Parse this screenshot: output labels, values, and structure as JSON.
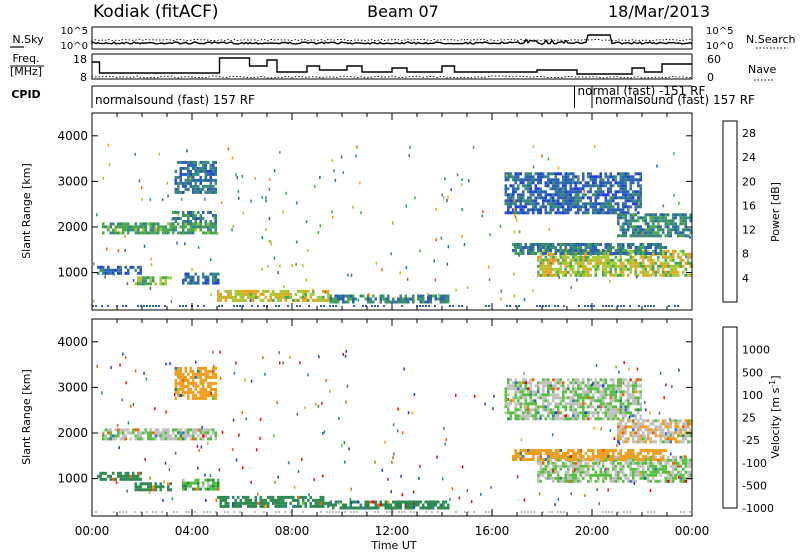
{
  "header": {
    "site": "Kodiak (fitACF)",
    "beam": "Beam 07",
    "date": "18/Mar/2013"
  },
  "strip": {
    "nsky_label": "N.Sky",
    "nsearch_label": "N.Search",
    "freq_label_line1": "Freq.",
    "freq_label_line2": "[MHz]",
    "nave_label": "Nave",
    "cpid_label": "CPID",
    "noise_ticks": [
      "10^5",
      "10^0"
    ],
    "freq_ticks": [
      "18",
      "8"
    ],
    "nave_ticks": [
      "60",
      "0"
    ],
    "cpid_segments": [
      {
        "label": "normalsound (fast) 157 RF",
        "t_start": 0,
        "t_end": 19.3
      },
      {
        "label": "normal (fast) -151 RF",
        "t_start": 19.3,
        "t_end": 20.0
      },
      {
        "label": "normalsound (fast) 157 RF",
        "t_start": 20.0,
        "t_end": 24
      }
    ]
  },
  "chart_data": [
    {
      "type": "heatmap",
      "title": "",
      "xlabel": "Time UT",
      "ylabel": "Slant Range [km]",
      "xlim": [
        0,
        24
      ],
      "ylim": [
        180,
        4500
      ],
      "x_ticks": [
        "00:00",
        "04:00",
        "08:00",
        "12:00",
        "16:00",
        "20:00",
        "00:00"
      ],
      "y_ticks": [
        1000,
        2000,
        3000,
        4000
      ],
      "colorbar": {
        "label": "Power [dB]",
        "range": [
          0,
          30
        ],
        "ticks": [
          4,
          8,
          12,
          16,
          20,
          24,
          28
        ],
        "colors": [
          "#1f3fe0",
          "#2c62b0",
          "#3a8a78",
          "#4aa850",
          "#a8c838",
          "#f0a020",
          "#f06010",
          "#e01010"
        ]
      },
      "regions": [
        {
          "t0": 0.2,
          "t1": 2.0,
          "r0": 1000,
          "r1": 1150,
          "value": 6
        },
        {
          "t0": 1.7,
          "t1": 3.2,
          "r0": 780,
          "r1": 920,
          "value": 14
        },
        {
          "t0": 3.6,
          "t1": 5.1,
          "r0": 800,
          "r1": 1000,
          "value": 6
        },
        {
          "t0": 0.4,
          "t1": 5.0,
          "r0": 1850,
          "r1": 2100,
          "value": 12
        },
        {
          "t0": 3.2,
          "t1": 5.0,
          "r0": 2100,
          "r1": 2350,
          "value": 8
        },
        {
          "t0": 3.3,
          "t1": 5.0,
          "r0": 2750,
          "r1": 3450,
          "value": 7
        },
        {
          "t0": 5.0,
          "t1": 9.5,
          "r0": 380,
          "r1": 620,
          "value": 18
        },
        {
          "t0": 9.5,
          "t1": 14.3,
          "r0": 360,
          "r1": 520,
          "value": 9
        },
        {
          "t0": 17.8,
          "t1": 24.0,
          "r0": 950,
          "r1": 1500,
          "value": 17
        },
        {
          "t0": 16.8,
          "t1": 23.0,
          "r0": 1400,
          "r1": 1650,
          "value": 8
        },
        {
          "t0": 16.5,
          "t1": 22.0,
          "r0": 2300,
          "r1": 3200,
          "value": 6
        },
        {
          "t0": 21.0,
          "t1": 24.0,
          "r0": 1800,
          "r1": 2300,
          "value": 9
        }
      ]
    },
    {
      "type": "heatmap",
      "title": "",
      "xlabel": "Time UT",
      "ylabel": "Slant Range [km]",
      "xlim": [
        0,
        24
      ],
      "ylim": [
        180,
        4500
      ],
      "x_ticks": [
        "00:00",
        "04:00",
        "08:00",
        "12:00",
        "16:00",
        "20:00",
        "00:00"
      ],
      "y_ticks": [
        1000,
        2000,
        3000,
        4000
      ],
      "colorbar": {
        "label": "Velocity [m s^-1]",
        "tick_labels": [
          "1000",
          "500",
          "100",
          "25",
          "-25",
          "-100",
          "-500",
          "-1000"
        ],
        "colors": [
          "#1a40c8",
          "#3a7ab0",
          "#2e8a50",
          "#58c040",
          "#c0c0c0",
          "#f0a020",
          "#f06010",
          "#e01010"
        ]
      },
      "regions": [
        {
          "t0": 0.2,
          "t1": 2.0,
          "r0": 1000,
          "r1": 1150,
          "value": 100
        },
        {
          "t0": 1.7,
          "t1": 3.2,
          "r0": 780,
          "r1": 920,
          "value": 100
        },
        {
          "t0": 3.6,
          "t1": 5.1,
          "r0": 800,
          "r1": 1000,
          "value": 25
        },
        {
          "t0": 0.4,
          "t1": 5.0,
          "r0": 1850,
          "r1": 2100,
          "value": 0
        },
        {
          "t0": 3.3,
          "t1": 5.0,
          "r0": 2750,
          "r1": 3450,
          "value": -100
        },
        {
          "t0": 5.0,
          "t1": 9.5,
          "r0": 380,
          "r1": 620,
          "value": 100
        },
        {
          "t0": 9.5,
          "t1": 14.3,
          "r0": 360,
          "r1": 520,
          "value": 100
        },
        {
          "t0": 17.8,
          "t1": 24.0,
          "r0": 950,
          "r1": 1500,
          "value": 0
        },
        {
          "t0": 16.8,
          "t1": 23.0,
          "r0": 1400,
          "r1": 1650,
          "value": -100
        },
        {
          "t0": 16.5,
          "t1": 22.0,
          "r0": 2300,
          "r1": 3200,
          "value": 0
        },
        {
          "t0": 21.0,
          "t1": 24.0,
          "r0": 1800,
          "r1": 2300,
          "value": -25
        }
      ]
    }
  ]
}
